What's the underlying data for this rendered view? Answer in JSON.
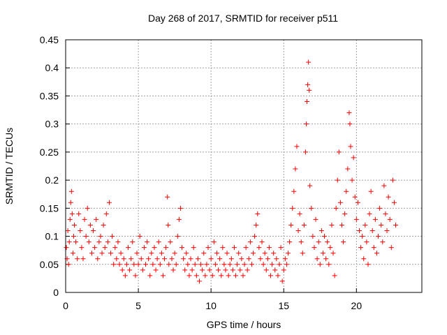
{
  "chart_data": {
    "type": "scatter",
    "title": "Day 268 of 2017, SRMTID for receiver p511",
    "xlabel": "GPS time / hours",
    "ylabel": "SRMTID / TECUs",
    "xlim": [
      0,
      24.5
    ],
    "ylim": [
      0,
      0.45
    ],
    "x_ticks": [
      0,
      5,
      10,
      15,
      20
    ],
    "x_tick_labels": [
      "0",
      "5",
      "10",
      "15",
      "20"
    ],
    "y_ticks": [
      0,
      0.05,
      0.1,
      0.15,
      0.2,
      0.25,
      0.3,
      0.35,
      0.4,
      0.45
    ],
    "y_tick_labels": [
      "0",
      "0.05",
      "0.1",
      "0.15",
      "0.2",
      "0.25",
      "0.3",
      "0.35",
      "0.4",
      "0.45"
    ],
    "grid": true,
    "marker": "+",
    "color": "#ff0000",
    "series": [
      {
        "name": "SRMTID",
        "points": [
          [
            0.05,
            0.08
          ],
          [
            0.1,
            0.06
          ],
          [
            0.15,
            0.11
          ],
          [
            0.2,
            0.05
          ],
          [
            0.25,
            0.09
          ],
          [
            0.3,
            0.13
          ],
          [
            0.35,
            0.16
          ],
          [
            0.4,
            0.18
          ],
          [
            0.45,
            0.14
          ],
          [
            0.5,
            0.07
          ],
          [
            0.55,
            0.1
          ],
          [
            0.6,
            0.12
          ],
          [
            0.7,
            0.09
          ],
          [
            0.8,
            0.06
          ],
          [
            0.9,
            0.14
          ],
          [
            1.0,
            0.11
          ],
          [
            1.1,
            0.08
          ],
          [
            1.2,
            0.06
          ],
          [
            1.3,
            0.13
          ],
          [
            1.4,
            0.1
          ],
          [
            1.5,
            0.15
          ],
          [
            1.6,
            0.09
          ],
          [
            1.7,
            0.12
          ],
          [
            1.8,
            0.07
          ],
          [
            1.9,
            0.11
          ],
          [
            2.0,
            0.08
          ],
          [
            2.1,
            0.13
          ],
          [
            2.2,
            0.06
          ],
          [
            2.3,
            0.09
          ],
          [
            2.4,
            0.1
          ],
          [
            2.5,
            0.07
          ],
          [
            2.6,
            0.12
          ],
          [
            2.7,
            0.08
          ],
          [
            2.8,
            0.14
          ],
          [
            2.9,
            0.09
          ],
          [
            3.0,
            0.16
          ],
          [
            3.1,
            0.07
          ],
          [
            3.2,
            0.1
          ],
          [
            3.3,
            0.05
          ],
          [
            3.4,
            0.08
          ],
          [
            3.5,
            0.06
          ],
          [
            3.6,
            0.09
          ],
          [
            3.7,
            0.05
          ],
          [
            3.8,
            0.07
          ],
          [
            3.9,
            0.04
          ],
          [
            4.0,
            0.06
          ],
          [
            4.1,
            0.03
          ],
          [
            4.2,
            0.05
          ],
          [
            4.3,
            0.08
          ],
          [
            4.4,
            0.04
          ],
          [
            4.5,
            0.06
          ],
          [
            4.6,
            0.09
          ],
          [
            4.7,
            0.05
          ],
          [
            4.8,
            0.03
          ],
          [
            4.9,
            0.07
          ],
          [
            5.0,
            0.05
          ],
          [
            5.1,
            0.1
          ],
          [
            5.2,
            0.06
          ],
          [
            5.3,
            0.04
          ],
          [
            5.4,
            0.08
          ],
          [
            5.5,
            0.05
          ],
          [
            5.6,
            0.09
          ],
          [
            5.7,
            0.06
          ],
          [
            5.8,
            0.03
          ],
          [
            5.9,
            0.07
          ],
          [
            6.0,
            0.05
          ],
          [
            6.1,
            0.08
          ],
          [
            6.2,
            0.04
          ],
          [
            6.3,
            0.06
          ],
          [
            6.4,
            0.09
          ],
          [
            6.5,
            0.05
          ],
          [
            6.6,
            0.07
          ],
          [
            6.7,
            0.03
          ],
          [
            6.8,
            0.06
          ],
          [
            6.9,
            0.08
          ],
          [
            7.0,
            0.17
          ],
          [
            7.05,
            0.12
          ],
          [
            7.1,
            0.05
          ],
          [
            7.2,
            0.09
          ],
          [
            7.3,
            0.06
          ],
          [
            7.4,
            0.04
          ],
          [
            7.5,
            0.07
          ],
          [
            7.6,
            0.05
          ],
          [
            7.7,
            0.1
          ],
          [
            7.8,
            0.13
          ],
          [
            7.9,
            0.15
          ],
          [
            8.0,
            0.08
          ],
          [
            8.1,
            0.06
          ],
          [
            8.2,
            0.04
          ],
          [
            8.3,
            0.07
          ],
          [
            8.4,
            0.05
          ],
          [
            8.5,
            0.03
          ],
          [
            8.6,
            0.06
          ],
          [
            8.7,
            0.04
          ],
          [
            8.8,
            0.08
          ],
          [
            8.9,
            0.05
          ],
          [
            9.0,
            0.03
          ],
          [
            9.1,
            0.06
          ],
          [
            9.2,
            0.02
          ],
          [
            9.3,
            0.05
          ],
          [
            9.4,
            0.04
          ],
          [
            9.5,
            0.07
          ],
          [
            9.6,
            0.03
          ],
          [
            9.7,
            0.05
          ],
          [
            9.8,
            0.08
          ],
          [
            9.9,
            0.04
          ],
          [
            10.0,
            0.06
          ],
          [
            10.1,
            0.03
          ],
          [
            10.2,
            0.09
          ],
          [
            10.3,
            0.05
          ],
          [
            10.4,
            0.07
          ],
          [
            10.5,
            0.04
          ],
          [
            10.6,
            0.06
          ],
          [
            10.7,
            0.03
          ],
          [
            10.8,
            0.08
          ],
          [
            10.9,
            0.05
          ],
          [
            11.0,
            0.04
          ],
          [
            11.1,
            0.07
          ],
          [
            11.2,
            0.03
          ],
          [
            11.3,
            0.05
          ],
          [
            11.4,
            0.06
          ],
          [
            11.5,
            0.04
          ],
          [
            11.6,
            0.08
          ],
          [
            11.7,
            0.03
          ],
          [
            11.8,
            0.05
          ],
          [
            11.9,
            0.07
          ],
          [
            12.0,
            0.04
          ],
          [
            12.1,
            0.06
          ],
          [
            12.2,
            0.03
          ],
          [
            12.3,
            0.05
          ],
          [
            12.4,
            0.08
          ],
          [
            12.5,
            0.04
          ],
          [
            12.6,
            0.06
          ],
          [
            12.7,
            0.09
          ],
          [
            12.8,
            0.05
          ],
          [
            12.9,
            0.07
          ],
          [
            13.0,
            0.1
          ],
          [
            13.1,
            0.12
          ],
          [
            13.2,
            0.14
          ],
          [
            13.3,
            0.08
          ],
          [
            13.4,
            0.06
          ],
          [
            13.5,
            0.09
          ],
          [
            13.6,
            0.05
          ],
          [
            13.7,
            0.07
          ],
          [
            13.8,
            0.04
          ],
          [
            13.9,
            0.06
          ],
          [
            14.0,
            0.08
          ],
          [
            14.1,
            0.03
          ],
          [
            14.2,
            0.05
          ],
          [
            14.3,
            0.07
          ],
          [
            14.4,
            0.04
          ],
          [
            14.5,
            0.06
          ],
          [
            14.6,
            0.03
          ],
          [
            14.7,
            0.05
          ],
          [
            14.8,
            0.08
          ],
          [
            14.9,
            0.02
          ],
          [
            15.0,
            0.04
          ],
          [
            15.1,
            0.06
          ],
          [
            15.2,
            0.05
          ],
          [
            15.3,
            0.07
          ],
          [
            15.4,
            0.09
          ],
          [
            15.5,
            0.12
          ],
          [
            15.6,
            0.15
          ],
          [
            15.7,
            0.18
          ],
          [
            15.8,
            0.22
          ],
          [
            15.9,
            0.26
          ],
          [
            16.0,
            0.11
          ],
          [
            16.1,
            0.14
          ],
          [
            16.2,
            0.09
          ],
          [
            16.3,
            0.07
          ],
          [
            16.4,
            0.12
          ],
          [
            16.5,
            0.25
          ],
          [
            16.55,
            0.3
          ],
          [
            16.6,
            0.34
          ],
          [
            16.65,
            0.37
          ],
          [
            16.7,
            0.41
          ],
          [
            16.75,
            0.36
          ],
          [
            16.8,
            0.19
          ],
          [
            16.9,
            0.15
          ],
          [
            17.0,
            0.1
          ],
          [
            17.1,
            0.08
          ],
          [
            17.2,
            0.13
          ],
          [
            17.3,
            0.06
          ],
          [
            17.4,
            0.09
          ],
          [
            17.5,
            0.05
          ],
          [
            17.6,
            0.11
          ],
          [
            17.7,
            0.07
          ],
          [
            17.8,
            0.1
          ],
          [
            17.9,
            0.06
          ],
          [
            18.0,
            0.09
          ],
          [
            18.1,
            0.05
          ],
          [
            18.2,
            0.08
          ],
          [
            18.3,
            0.12
          ],
          [
            18.4,
            0.07
          ],
          [
            18.5,
            0.03
          ],
          [
            18.6,
            0.15
          ],
          [
            18.7,
            0.2
          ],
          [
            18.8,
            0.25
          ],
          [
            18.9,
            0.16
          ],
          [
            19.0,
            0.12
          ],
          [
            19.1,
            0.09
          ],
          [
            19.2,
            0.14
          ],
          [
            19.3,
            0.18
          ],
          [
            19.4,
            0.22
          ],
          [
            19.5,
            0.32
          ],
          [
            19.55,
            0.3
          ],
          [
            19.6,
            0.26
          ],
          [
            19.7,
            0.2
          ],
          [
            19.8,
            0.24
          ],
          [
            19.9,
            0.17
          ],
          [
            20.0,
            0.13
          ],
          [
            20.1,
            0.16
          ],
          [
            20.2,
            0.11
          ],
          [
            20.3,
            0.08
          ],
          [
            20.4,
            0.1
          ],
          [
            20.5,
            0.06
          ],
          [
            20.6,
            0.12
          ],
          [
            20.7,
            0.09
          ],
          [
            20.8,
            0.05
          ],
          [
            20.9,
            0.14
          ],
          [
            21.0,
            0.18
          ],
          [
            21.1,
            0.11
          ],
          [
            21.2,
            0.08
          ],
          [
            21.3,
            0.13
          ],
          [
            21.4,
            0.07
          ],
          [
            21.5,
            0.1
          ],
          [
            21.6,
            0.15
          ],
          [
            21.7,
            0.12
          ],
          [
            21.8,
            0.09
          ],
          [
            21.9,
            0.19
          ],
          [
            22.0,
            0.14
          ],
          [
            22.1,
            0.11
          ],
          [
            22.2,
            0.17
          ],
          [
            22.3,
            0.13
          ],
          [
            22.4,
            0.08
          ],
          [
            22.5,
            0.2
          ],
          [
            22.6,
            0.16
          ],
          [
            22.7,
            0.12
          ]
        ]
      }
    ]
  }
}
